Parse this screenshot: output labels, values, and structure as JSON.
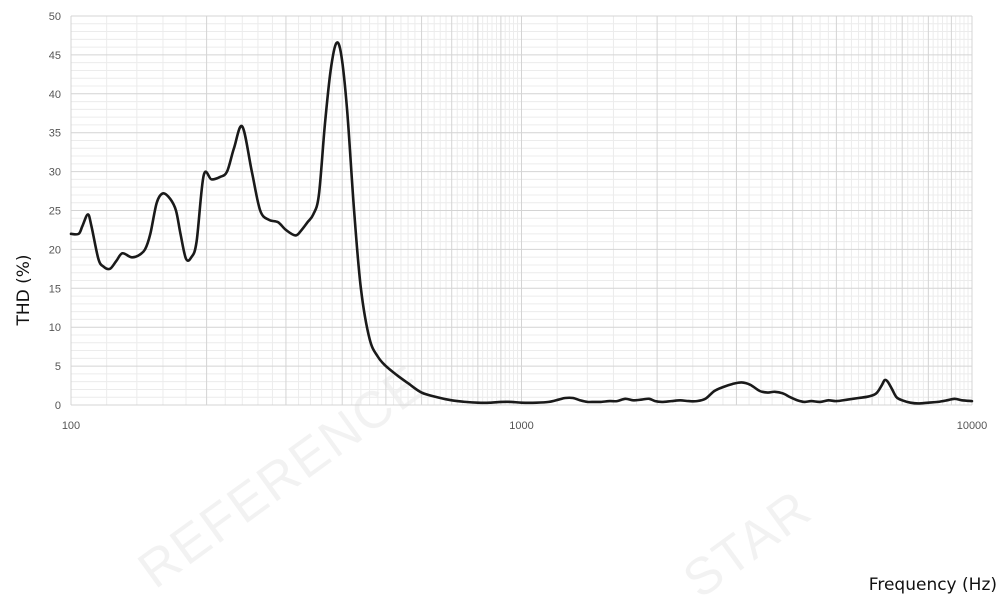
{
  "chart_data": {
    "type": "line",
    "title": "",
    "xlabel": "Frequency (Hz)",
    "ylabel": "THD (%)",
    "x_scale": "log",
    "xlim": [
      100,
      10000
    ],
    "ylim": [
      0,
      50
    ],
    "x_ticks": [
      "100",
      "1000",
      "10000"
    ],
    "y_ticks": [
      "0",
      "5",
      "10",
      "15",
      "20",
      "25",
      "30",
      "35",
      "40",
      "45",
      "50"
    ],
    "grid": true,
    "legend": "none",
    "line_color": "#1a1a1a",
    "watermark": [
      "REFERENCE",
      "STAR"
    ],
    "series": [
      {
        "x": [
          100,
          104,
          106,
          109,
          111,
          115,
          118,
          122,
          126,
          130,
          136,
          141,
          146,
          150,
          155,
          160,
          166,
          171,
          175,
          180,
          185,
          190,
          197,
          205,
          214,
          222,
          230,
          240,
          252,
          263,
          275,
          288,
          300,
          315,
          325,
          335,
          345,
          355,
          366,
          377,
          388,
          398,
          410,
          425,
          440,
          460,
          480,
          500,
          530,
          560,
          600,
          650,
          700,
          750,
          800,
          850,
          900,
          950,
          1000,
          1080,
          1150,
          1210,
          1250,
          1300,
          1350,
          1400,
          1450,
          1500,
          1570,
          1630,
          1700,
          1770,
          1850,
          1920,
          1980,
          2050,
          2150,
          2250,
          2350,
          2450,
          2560,
          2680,
          2800,
          2940,
          3080,
          3220,
          3380,
          3520,
          3650,
          3800,
          3950,
          4100,
          4250,
          4400,
          4600,
          4800,
          5000,
          5300,
          5600,
          5900,
          6130,
          6300,
          6400,
          6500,
          6650,
          6800,
          7000,
          7300,
          7600,
          8000,
          8400,
          8800,
          9150,
          9500,
          10000
        ],
        "values": [
          22,
          22,
          23,
          24.5,
          23,
          18.8,
          17.8,
          17.5,
          18.5,
          19.5,
          19,
          19.2,
          20,
          22,
          26,
          27.2,
          26.5,
          25,
          22,
          18.8,
          19,
          21,
          29.5,
          29,
          29.3,
          30,
          33,
          35.8,
          30,
          25,
          23.8,
          23.5,
          22.5,
          21.8,
          22.5,
          23.5,
          24.5,
          27,
          36,
          43,
          46.5,
          45,
          38,
          25,
          15,
          8.5,
          6.2,
          5,
          3.8,
          2.8,
          1.6,
          1.0,
          0.6,
          0.4,
          0.3,
          0.3,
          0.4,
          0.4,
          0.3,
          0.3,
          0.4,
          0.7,
          0.9,
          0.9,
          0.6,
          0.4,
          0.4,
          0.4,
          0.5,
          0.5,
          0.8,
          0.6,
          0.7,
          0.8,
          0.5,
          0.4,
          0.5,
          0.6,
          0.5,
          0.5,
          0.8,
          1.8,
          2.3,
          2.7,
          2.9,
          2.6,
          1.8,
          1.6,
          1.7,
          1.5,
          1.0,
          0.6,
          0.4,
          0.5,
          0.4,
          0.6,
          0.5,
          0.7,
          0.9,
          1.1,
          1.5,
          2.5,
          3.2,
          3.0,
          2.0,
          1.0,
          0.6,
          0.3,
          0.2,
          0.3,
          0.4,
          0.6,
          0.8,
          0.6,
          0.5
        ]
      }
    ]
  }
}
